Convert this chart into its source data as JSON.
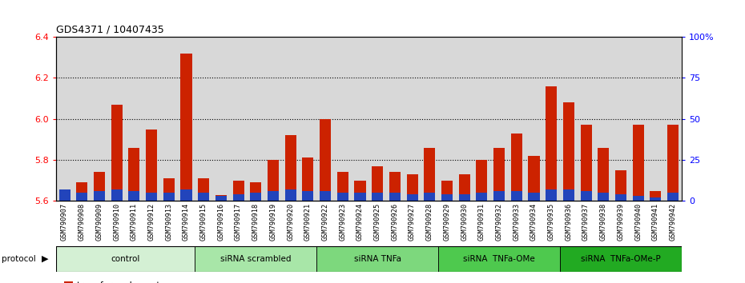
{
  "title": "GDS4371 / 10407435",
  "samples": [
    "GSM790907",
    "GSM790908",
    "GSM790909",
    "GSM790910",
    "GSM790911",
    "GSM790912",
    "GSM790913",
    "GSM790914",
    "GSM790915",
    "GSM790916",
    "GSM790917",
    "GSM790918",
    "GSM790919",
    "GSM790920",
    "GSM790921",
    "GSM790922",
    "GSM790923",
    "GSM790924",
    "GSM790925",
    "GSM790926",
    "GSM790927",
    "GSM790928",
    "GSM790929",
    "GSM790930",
    "GSM790931",
    "GSM790932",
    "GSM790933",
    "GSM790934",
    "GSM790935",
    "GSM790936",
    "GSM790937",
    "GSM790938",
    "GSM790939",
    "GSM790940",
    "GSM790941",
    "GSM790942"
  ],
  "transformed_count": [
    5.63,
    5.69,
    5.74,
    6.07,
    5.86,
    5.95,
    5.71,
    6.32,
    5.71,
    5.63,
    5.7,
    5.69,
    5.8,
    5.92,
    5.81,
    6.0,
    5.74,
    5.7,
    5.77,
    5.74,
    5.73,
    5.86,
    5.7,
    5.73,
    5.8,
    5.86,
    5.93,
    5.82,
    6.16,
    6.08,
    5.97,
    5.86,
    5.75,
    5.97,
    5.65,
    5.97
  ],
  "percentile_rank": [
    7,
    5,
    6,
    7,
    6,
    5,
    5,
    7,
    5,
    3,
    4,
    5,
    6,
    7,
    6,
    6,
    5,
    5,
    5,
    5,
    4,
    5,
    4,
    4,
    5,
    6,
    6,
    5,
    7,
    7,
    6,
    5,
    4,
    3,
    2,
    5
  ],
  "groups": [
    {
      "label": "control",
      "start": 0,
      "end": 8,
      "color": "#d4f0d4"
    },
    {
      "label": "siRNA scrambled",
      "start": 8,
      "end": 15,
      "color": "#a8e6a8"
    },
    {
      "label": "siRNA TNFa",
      "start": 15,
      "end": 22,
      "color": "#7dd87d"
    },
    {
      "label": "siRNA  TNFa-OMe",
      "start": 22,
      "end": 29,
      "color": "#4ec94e"
    },
    {
      "label": "siRNA  TNFa-OMe-P",
      "start": 29,
      "end": 36,
      "color": "#22aa22"
    }
  ],
  "ylim_left": [
    5.6,
    6.4
  ],
  "ylim_right": [
    0,
    100
  ],
  "yticks_left": [
    5.6,
    5.8,
    6.0,
    6.2,
    6.4
  ],
  "yticks_right": [
    0,
    25,
    50,
    75,
    100
  ],
  "ytick_labels_right": [
    "0",
    "25",
    "50",
    "75",
    "100%"
  ],
  "bar_color_red": "#cc2200",
  "bar_color_blue": "#2244bb",
  "plot_bg": "#d8d8d8",
  "bar_width": 0.65
}
